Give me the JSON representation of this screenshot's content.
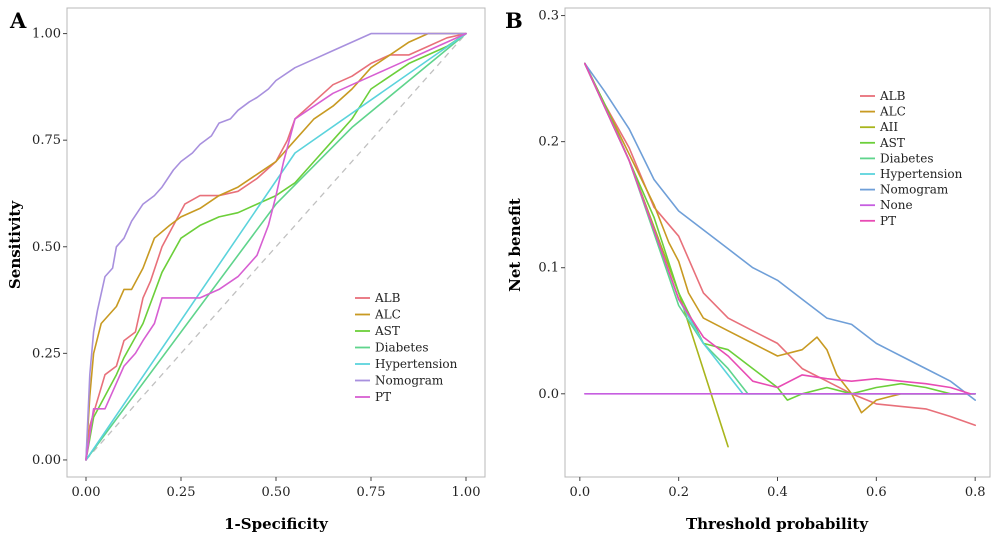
{
  "chart_data": [
    {
      "panel": "A",
      "type": "line",
      "xlabel": "1-Specificity",
      "ylabel": "Sensitivity",
      "xlim": [
        -0.05,
        1.05
      ],
      "ylim": [
        -0.04,
        1.06
      ],
      "xticks": [
        0.0,
        0.25,
        0.5,
        0.75,
        1.0
      ],
      "xtick_labels": [
        "0.00",
        "0.25",
        "0.50",
        "0.75",
        "1.00"
      ],
      "yticks": [
        0.0,
        0.25,
        0.5,
        0.75,
        1.0
      ],
      "ytick_labels": [
        "0.00",
        "0.25",
        "0.50",
        "0.75",
        "1.00"
      ],
      "grid": false,
      "legend_position": "center-right",
      "reference_line": {
        "x": [
          0,
          1
        ],
        "y": [
          0,
          1
        ],
        "color": "#c0c0c0",
        "dashed": true
      },
      "series": [
        {
          "name": "ALB",
          "color": "#e8707a",
          "x": [
            0,
            0.01,
            0.03,
            0.05,
            0.08,
            0.1,
            0.13,
            0.15,
            0.17,
            0.2,
            0.23,
            0.26,
            0.3,
            0.35,
            0.4,
            0.45,
            0.5,
            0.53,
            0.55,
            0.6,
            0.65,
            0.7,
            0.75,
            0.8,
            0.85,
            0.9,
            0.95,
            1.0
          ],
          "y": [
            0,
            0.08,
            0.14,
            0.2,
            0.22,
            0.28,
            0.3,
            0.38,
            0.42,
            0.5,
            0.55,
            0.6,
            0.62,
            0.62,
            0.63,
            0.66,
            0.7,
            0.75,
            0.8,
            0.84,
            0.88,
            0.9,
            0.93,
            0.95,
            0.95,
            0.97,
            0.99,
            1.0
          ]
        },
        {
          "name": "ALC",
          "color": "#c89a22",
          "x": [
            0,
            0.01,
            0.02,
            0.04,
            0.06,
            0.08,
            0.1,
            0.12,
            0.15,
            0.18,
            0.22,
            0.25,
            0.3,
            0.35,
            0.4,
            0.45,
            0.5,
            0.52,
            0.55,
            0.6,
            0.65,
            0.7,
            0.75,
            0.8,
            0.85,
            0.9,
            0.95,
            1.0
          ],
          "y": [
            0,
            0.15,
            0.25,
            0.32,
            0.34,
            0.36,
            0.4,
            0.4,
            0.45,
            0.52,
            0.55,
            0.57,
            0.59,
            0.62,
            0.64,
            0.67,
            0.7,
            0.72,
            0.75,
            0.8,
            0.83,
            0.87,
            0.92,
            0.95,
            0.98,
            1.0,
            1.0,
            1.0
          ]
        },
        {
          "name": "AST",
          "color": "#6ccf3a",
          "x": [
            0,
            0.02,
            0.05,
            0.08,
            0.1,
            0.15,
            0.2,
            0.25,
            0.3,
            0.35,
            0.4,
            0.45,
            0.5,
            0.55,
            0.6,
            0.65,
            0.7,
            0.75,
            0.8,
            0.85,
            0.9,
            0.95,
            1.0
          ],
          "y": [
            0,
            0.1,
            0.15,
            0.2,
            0.24,
            0.32,
            0.44,
            0.52,
            0.55,
            0.57,
            0.58,
            0.6,
            0.62,
            0.65,
            0.7,
            0.75,
            0.8,
            0.87,
            0.9,
            0.93,
            0.95,
            0.97,
            1.0
          ]
        },
        {
          "name": "Diabetes",
          "color": "#5fd48c",
          "x": [
            0,
            0.5,
            0.7,
            1.0
          ],
          "y": [
            0,
            0.6,
            0.78,
            1.0
          ]
        },
        {
          "name": "Hypertension",
          "color": "#5bd3dc",
          "x": [
            0,
            0.55,
            1.0
          ],
          "y": [
            0,
            0.72,
            1.0
          ]
        },
        {
          "name": "Nomogram",
          "color": "#a890de",
          "x": [
            0,
            0.01,
            0.02,
            0.03,
            0.05,
            0.07,
            0.08,
            0.1,
            0.12,
            0.15,
            0.18,
            0.2,
            0.23,
            0.25,
            0.28,
            0.3,
            0.33,
            0.35,
            0.38,
            0.4,
            0.43,
            0.45,
            0.48,
            0.5,
            0.55,
            0.6,
            0.65,
            0.7,
            0.75,
            0.8,
            0.85,
            0.9,
            1.0
          ],
          "y": [
            0,
            0.2,
            0.3,
            0.35,
            0.43,
            0.45,
            0.5,
            0.52,
            0.56,
            0.6,
            0.62,
            0.64,
            0.68,
            0.7,
            0.72,
            0.74,
            0.76,
            0.79,
            0.8,
            0.82,
            0.84,
            0.85,
            0.87,
            0.89,
            0.92,
            0.94,
            0.96,
            0.98,
            1.0,
            1.0,
            1.0,
            1.0,
            1.0
          ]
        },
        {
          "name": "PT",
          "color": "#d75fd2",
          "x": [
            0,
            0.02,
            0.05,
            0.08,
            0.1,
            0.13,
            0.15,
            0.18,
            0.2,
            0.25,
            0.3,
            0.35,
            0.4,
            0.45,
            0.48,
            0.5,
            0.52,
            0.55,
            0.6,
            0.65,
            0.7,
            0.75,
            0.8,
            0.85,
            0.9,
            1.0
          ],
          "y": [
            0,
            0.12,
            0.12,
            0.18,
            0.22,
            0.25,
            0.28,
            0.32,
            0.38,
            0.38,
            0.38,
            0.4,
            0.43,
            0.48,
            0.55,
            0.62,
            0.7,
            0.8,
            0.83,
            0.86,
            0.88,
            0.9,
            0.92,
            0.94,
            0.96,
            1.0
          ]
        }
      ]
    },
    {
      "panel": "B",
      "type": "line",
      "xlabel": "Threshold probability",
      "ylabel": "Net benefit",
      "xlim": [
        -0.03,
        0.83
      ],
      "ylim": [
        -0.066,
        0.306
      ],
      "xticks": [
        0.0,
        0.2,
        0.4,
        0.6,
        0.8
      ],
      "xtick_labels": [
        "0.0",
        "0.2",
        "0.4",
        "0.6",
        "0.8"
      ],
      "yticks": [
        0.0,
        0.1,
        0.2,
        0.3
      ],
      "ytick_labels": [
        "0.0",
        "0.1",
        "0.2",
        "0.3"
      ],
      "grid": false,
      "legend_position": "top-right",
      "series": [
        {
          "name": "ALB",
          "color": "#e8707a",
          "x": [
            0.01,
            0.05,
            0.1,
            0.15,
            0.2,
            0.25,
            0.3,
            0.35,
            0.4,
            0.45,
            0.5,
            0.55,
            0.6,
            0.65,
            0.7,
            0.75,
            0.8
          ],
          "y": [
            0.262,
            0.23,
            0.195,
            0.148,
            0.125,
            0.08,
            0.06,
            0.05,
            0.04,
            0.02,
            0.01,
            0.0,
            -0.008,
            -0.01,
            -0.012,
            -0.018,
            -0.025
          ]
        },
        {
          "name": "ALC",
          "color": "#c89a22",
          "x": [
            0.01,
            0.05,
            0.1,
            0.15,
            0.18,
            0.2,
            0.22,
            0.25,
            0.3,
            0.35,
            0.4,
            0.45,
            0.48,
            0.5,
            0.52,
            0.55,
            0.57,
            0.6,
            0.65,
            0.7,
            0.75,
            0.8
          ],
          "y": [
            0.262,
            0.23,
            0.19,
            0.15,
            0.12,
            0.105,
            0.08,
            0.06,
            0.05,
            0.04,
            0.03,
            0.035,
            0.045,
            0.035,
            0.015,
            0.0,
            -0.015,
            -0.005,
            0.0,
            0.0,
            0.0,
            0.0
          ]
        },
        {
          "name": "AII",
          "color": "#a9b51c",
          "x": [
            0.01,
            0.1,
            0.2,
            0.3
          ],
          "y": [
            0.262,
            0.185,
            0.08,
            -0.042
          ]
        },
        {
          "name": "AST",
          "color": "#6ccf3a",
          "x": [
            0.01,
            0.05,
            0.1,
            0.15,
            0.2,
            0.25,
            0.3,
            0.35,
            0.4,
            0.42,
            0.45,
            0.5,
            0.55,
            0.6,
            0.65,
            0.7,
            0.75,
            0.8
          ],
          "y": [
            0.262,
            0.23,
            0.185,
            0.14,
            0.08,
            0.04,
            0.035,
            0.02,
            0.005,
            -0.005,
            0.0,
            0.005,
            0.0,
            0.005,
            0.008,
            0.005,
            0.0,
            0.0
          ]
        },
        {
          "name": "Diabetes",
          "color": "#5fd48c",
          "x": [
            0.01,
            0.1,
            0.2,
            0.25,
            0.3,
            0.34,
            0.8
          ],
          "y": [
            0.262,
            0.185,
            0.07,
            0.04,
            0.02,
            0.0,
            0.0
          ]
        },
        {
          "name": "Hypertension",
          "color": "#5bd3dc",
          "x": [
            0.01,
            0.1,
            0.2,
            0.25,
            0.3,
            0.33,
            0.8
          ],
          "y": [
            0.262,
            0.185,
            0.075,
            0.04,
            0.015,
            0.0,
            0.0
          ]
        },
        {
          "name": "Nomogram",
          "color": "#6f9fd8",
          "x": [
            0.01,
            0.05,
            0.1,
            0.15,
            0.2,
            0.25,
            0.3,
            0.35,
            0.4,
            0.45,
            0.5,
            0.55,
            0.6,
            0.65,
            0.7,
            0.75,
            0.8
          ],
          "y": [
            0.262,
            0.24,
            0.21,
            0.17,
            0.145,
            0.13,
            0.115,
            0.1,
            0.09,
            0.075,
            0.06,
            0.055,
            0.04,
            0.03,
            0.02,
            0.01,
            -0.005
          ]
        },
        {
          "name": "None",
          "color": "#c65ee0",
          "x": [
            0.01,
            0.8
          ],
          "y": [
            0.0,
            0.0
          ]
        },
        {
          "name": "PT",
          "color": "#e84bb4",
          "x": [
            0.01,
            0.1,
            0.2,
            0.25,
            0.3,
            0.35,
            0.4,
            0.45,
            0.5,
            0.55,
            0.6,
            0.65,
            0.7,
            0.75,
            0.79
          ],
          "y": [
            0.262,
            0.185,
            0.075,
            0.045,
            0.03,
            0.01,
            0.005,
            0.015,
            0.012,
            0.01,
            0.012,
            0.01,
            0.008,
            0.005,
            0.0
          ]
        }
      ]
    }
  ]
}
